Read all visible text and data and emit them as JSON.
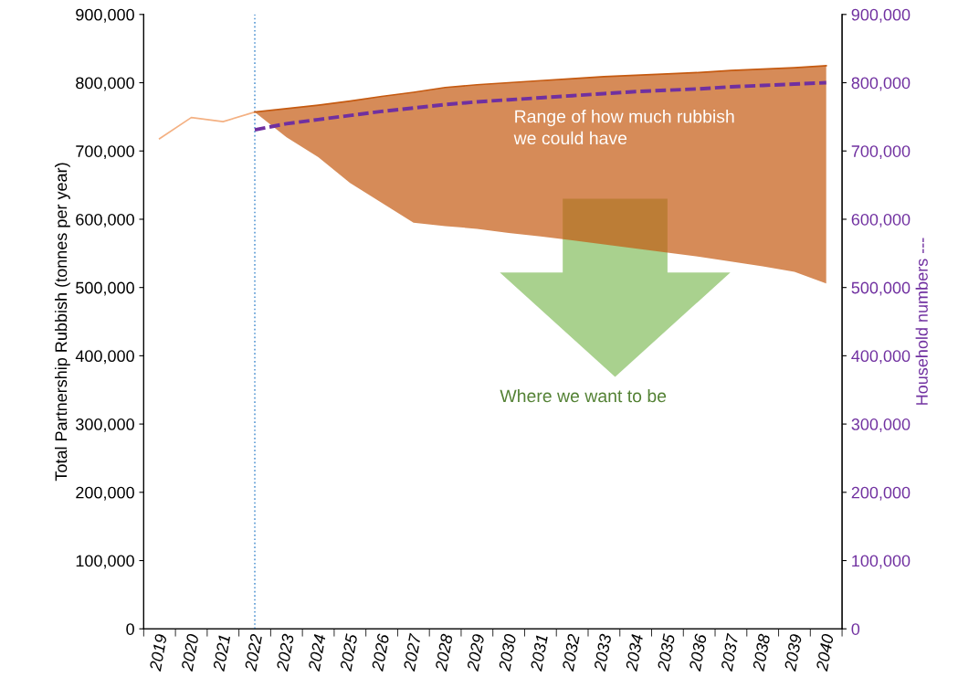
{
  "chart_data": {
    "type": "line",
    "categories": [
      "2019",
      "2020",
      "2021",
      "2022",
      "2023",
      "2024",
      "2025",
      "2026",
      "2027",
      "2028",
      "2029",
      "2030",
      "2031",
      "2032",
      "2033",
      "2034",
      "2035",
      "2036",
      "2037",
      "2038",
      "2039",
      "2040"
    ],
    "ylabel": "Total Partnership Rubbish (tonnes per year)",
    "y2label": "Household numbers ---",
    "ylim": [
      0,
      900000
    ],
    "yticks": [
      {
        "value": 0,
        "label": "0"
      },
      {
        "value": 100000,
        "label": "100,000"
      },
      {
        "value": 200000,
        "label": "200,000"
      },
      {
        "value": 300000,
        "label": "300,000"
      },
      {
        "value": 400000,
        "label": "400,000"
      },
      {
        "value": 500000,
        "label": "500,000"
      },
      {
        "value": 600000,
        "label": "600,000"
      },
      {
        "value": 700000,
        "label": "700,000"
      },
      {
        "value": 800000,
        "label": "800,000"
      },
      {
        "value": 900000,
        "label": "900,000"
      }
    ],
    "y2lim": [
      0,
      900000
    ],
    "y2ticks": [
      {
        "value": 0,
        "label": "0"
      },
      {
        "value": 100000,
        "label": "100,000"
      },
      {
        "value": 200000,
        "label": "200,000"
      },
      {
        "value": 300000,
        "label": "300,000"
      },
      {
        "value": 400000,
        "label": "400,000"
      },
      {
        "value": 500000,
        "label": "500,000"
      },
      {
        "value": 600000,
        "label": "600,000"
      },
      {
        "value": 700000,
        "label": "700,000"
      },
      {
        "value": 800000,
        "label": "800,000"
      },
      {
        "value": 900000,
        "label": "900,000"
      }
    ],
    "series": [
      {
        "color": "#f4b183",
        "values": [
          718000,
          749000,
          743000,
          757000,
          null,
          null,
          null,
          null,
          null,
          null,
          null,
          null,
          null,
          null,
          null,
          null,
          null,
          null,
          null,
          null,
          null,
          null
        ]
      },
      {
        "color": "#c55a11",
        "values": [
          null,
          null,
          null,
          757000,
          762000,
          767000,
          773000,
          780000,
          786000,
          793000,
          797000,
          800000,
          803000,
          806000,
          809000,
          811000,
          813000,
          815000,
          818000,
          820000,
          822000,
          825000
        ],
        "upper": [
          null,
          null,
          null,
          757000,
          762000,
          767000,
          773000,
          780000,
          786000,
          793000,
          797000,
          800000,
          803000,
          806000,
          809000,
          811000,
          813000,
          815000,
          818000,
          820000,
          822000,
          825000
        ],
        "lower": [
          null,
          null,
          null,
          757000,
          720000,
          691000,
          653000,
          624000,
          595000,
          590000,
          586000,
          580000,
          575000,
          569000,
          563000,
          557000,
          551000,
          545000,
          538000,
          531000,
          523000,
          506000
        ]
      },
      {
        "color": "#7030a0",
        "axis": "y2",
        "line_style": "dashed",
        "values": [
          null,
          null,
          null,
          731000,
          740000,
          746000,
          752000,
          758000,
          763000,
          768000,
          772000,
          775000,
          778000,
          781000,
          784000,
          787000,
          789000,
          791000,
          794000,
          796000,
          798000,
          800000
        ]
      }
    ],
    "ref_lines": [
      {
        "axis": "x",
        "value": "2022",
        "color": "#5b9bd5",
        "line_style": "dotted"
      }
    ],
    "annotations": [
      "Range of how much rubbish\nwe could have",
      "Where we want to be"
    ],
    "grid": false,
    "legend": false
  }
}
